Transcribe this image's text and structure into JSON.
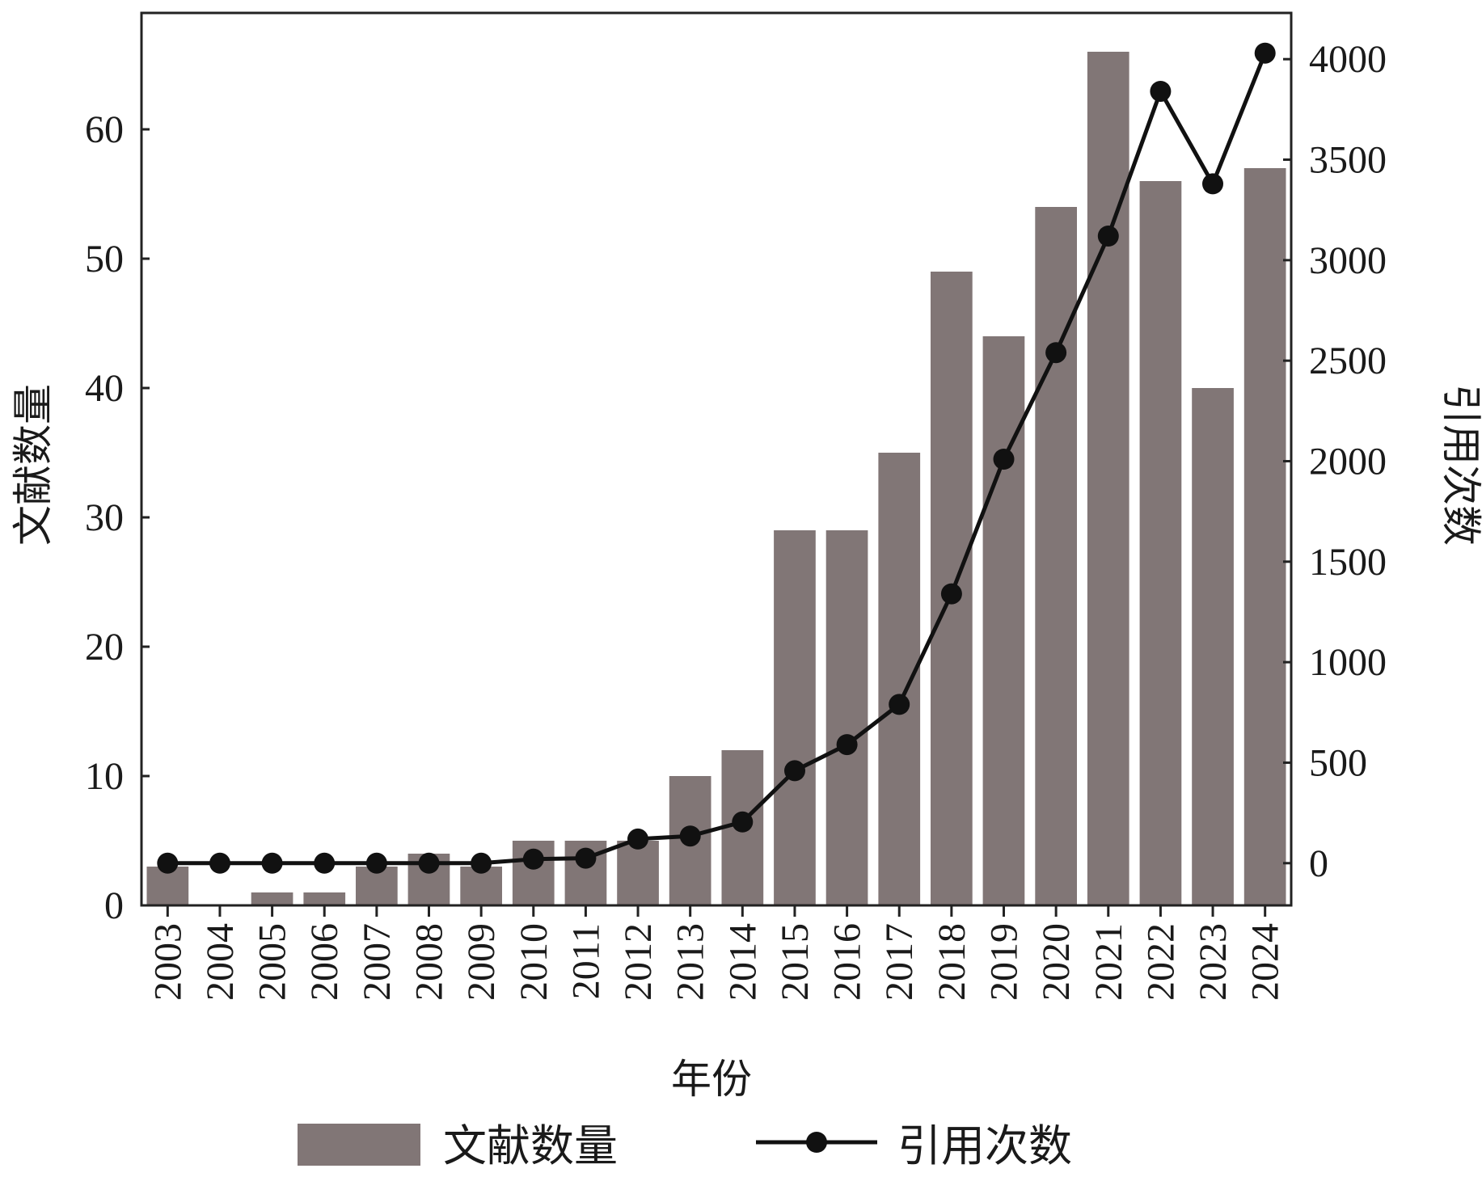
{
  "chart_data": {
    "type": "bar+line",
    "categories": [
      "2003",
      "2004",
      "2005",
      "2006",
      "2007",
      "2008",
      "2009",
      "2010",
      "2011",
      "2012",
      "2013",
      "2014",
      "2015",
      "2016",
      "2017",
      "2018",
      "2019",
      "2020",
      "2021",
      "2022",
      "2023",
      "2024"
    ],
    "series": [
      {
        "name": "文献数量",
        "type": "bar",
        "axis": "left",
        "color": "#817676",
        "values": [
          3,
          0,
          1,
          1,
          3,
          4,
          3,
          5,
          5,
          5,
          10,
          12,
          29,
          29,
          35,
          49,
          44,
          54,
          66,
          56,
          40,
          57
        ]
      },
      {
        "name": "引用次数",
        "type": "line",
        "axis": "right",
        "color": "#111111",
        "values": [
          0,
          0,
          0,
          0,
          0,
          0,
          0,
          20,
          25,
          120,
          135,
          205,
          460,
          590,
          790,
          1340,
          2010,
          2540,
          3120,
          3840,
          3380,
          4030
        ]
      }
    ],
    "xlabel": "年份",
    "ylabel_left": "文献数量",
    "ylabel_right": "引用次数",
    "ylim_left": [
      0,
      69
    ],
    "yticks_left": [
      "0",
      "10",
      "20",
      "30",
      "40",
      "50",
      "60"
    ],
    "ylim_right": [
      -210,
      4230
    ],
    "yticks_right": [
      "0",
      "500",
      "1000",
      "1500",
      "2000",
      "2500",
      "3000",
      "3500",
      "4000"
    ],
    "legend": {
      "position": "bottom",
      "bar_label": "文献数量",
      "line_label": "引用次数"
    },
    "grid": false
  }
}
